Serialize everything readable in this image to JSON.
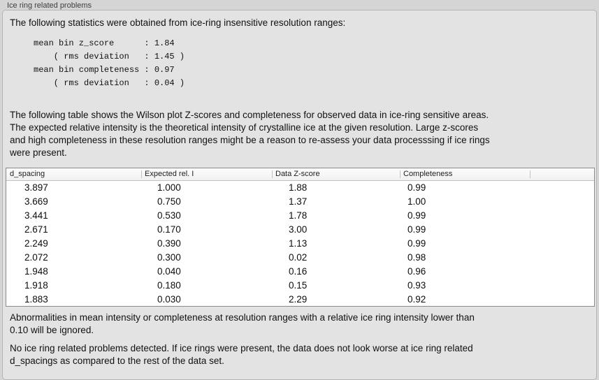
{
  "colors": {
    "window_bg": "#d5d5d5",
    "panel_bg": "#e3e3e3",
    "panel_border": "#b4b4b4",
    "title_text": "#3e3e3e",
    "text": "#111111",
    "table_bg": "#ffffff",
    "table_border": "#8a8a8a",
    "header_bg_top": "#fdfdfd",
    "header_bg": "#f1f1f1",
    "header_sep": "#c2c2c2"
  },
  "panel": {
    "title": "Ice ring related problems"
  },
  "intro": {
    "text": "The following statistics were obtained from ice-ring insensitive resolution ranges:"
  },
  "stats": {
    "lines": [
      "mean bin z_score      : 1.84",
      "    ( rms deviation   : 1.45 )",
      "mean bin completeness : 0.97",
      "    ( rms deviation   : 0.04 )"
    ]
  },
  "description": {
    "lines": [
      "The following table shows the Wilson plot Z-scores and completeness for observed data in ice-ring sensitive areas.",
      "The expected relative intensity is the theoretical intensity of crystalline ice at the given resolution. Large z-scores",
      "and high completeness in these resolution ranges might be a reason to re-assess your data processsing if ice rings",
      "were present."
    ]
  },
  "table": {
    "columns": [
      "d_spacing",
      "Expected rel. I",
      "Data Z-score",
      "Completeness",
      ""
    ],
    "rows": [
      [
        "3.897",
        "1.000",
        "1.88",
        "0.99"
      ],
      [
        "3.669",
        "0.750",
        "1.37",
        "1.00"
      ],
      [
        "3.441",
        "0.530",
        "1.78",
        "0.99"
      ],
      [
        "2.671",
        "0.170",
        "3.00",
        "0.99"
      ],
      [
        "2.249",
        "0.390",
        "1.13",
        "0.99"
      ],
      [
        "2.072",
        "0.300",
        "0.02",
        "0.98"
      ],
      [
        "1.948",
        "0.040",
        "0.16",
        "0.96"
      ],
      [
        "1.918",
        "0.180",
        "0.15",
        "0.93"
      ],
      [
        "1.883",
        "0.030",
        "2.29",
        "0.92"
      ]
    ]
  },
  "notes": {
    "ignore": {
      "lines": [
        "Abnormalities in mean intensity or completeness at resolution ranges with a relative ice ring intensity lower than",
        "0.10 will be ignored."
      ]
    },
    "conclusion": {
      "lines": [
        "No ice ring related problems detected. If ice rings were present, the data does not look worse at ice ring related",
        "d_spacings as compared to the rest of the data set."
      ]
    }
  }
}
